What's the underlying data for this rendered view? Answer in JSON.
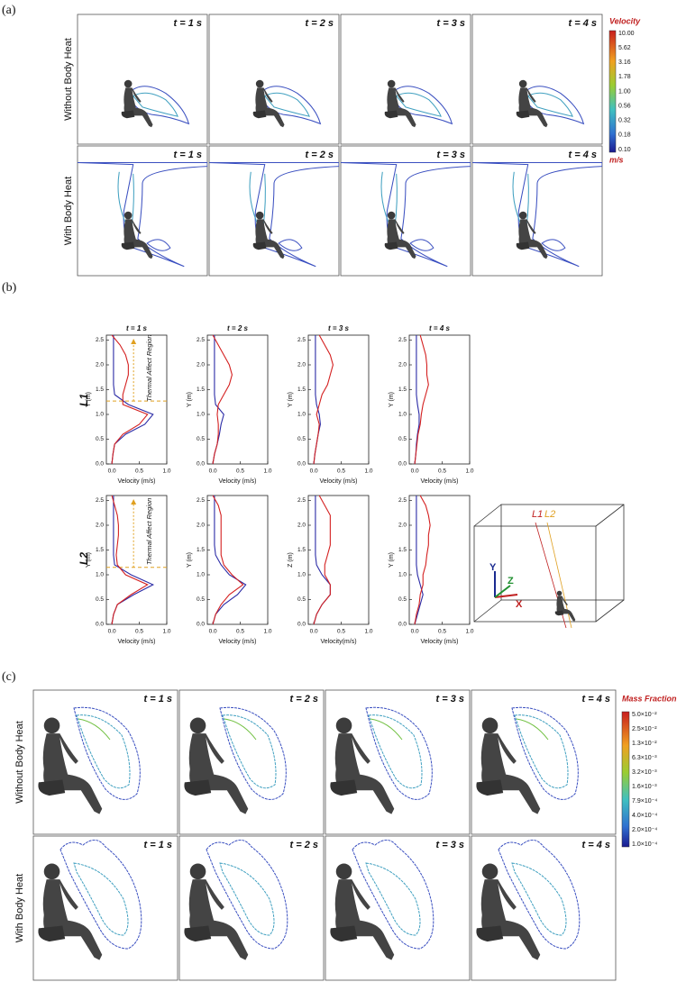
{
  "panel_a": {
    "label": "(a)",
    "row_labels": [
      "Without Body Heat",
      "With Body Heat"
    ],
    "time_labels": [
      "t = 1 s",
      "t = 2 s",
      "t = 3 s",
      "t = 4 s"
    ],
    "colorbar": {
      "title": "Velocity",
      "unit": "m/s",
      "labels": [
        "10.00",
        "5.62",
        "3.16",
        "1.78",
        "1.00",
        "0.56",
        "0.32",
        "0.18",
        "0.10"
      ]
    }
  },
  "panel_b": {
    "label": "(b)",
    "row_labels": [
      "L1",
      "L2"
    ],
    "diagram_labels": [
      "L1",
      "L2",
      "Y",
      "Z",
      "X"
    ]
  },
  "chart_data": [
    {
      "type": "line",
      "title": "t = 1 s",
      "xlabel": "Velocity (m/s)",
      "ylabel": "Y (m)",
      "xlim": [
        -0.1,
        1.0
      ],
      "ylim": [
        0,
        2.6
      ],
      "xticks": [
        {
          "value": 0,
          "label": "0.0"
        },
        {
          "value": 0.5,
          "label": "0.5"
        },
        {
          "value": 1,
          "label": "1.0"
        }
      ],
      "yticks": [
        {
          "value": 0,
          "label": "0.0"
        },
        {
          "value": 0.5,
          "label": "0.5"
        },
        {
          "value": 1,
          "label": "1.0"
        },
        {
          "value": 1.5,
          "label": "1.5"
        },
        {
          "value": 2,
          "label": "2.0"
        },
        {
          "value": 2.5,
          "label": "2.5"
        }
      ],
      "annotation": {
        "text": "Thermal Affect Region",
        "y": 1.27
      },
      "y": [
        0,
        0.2,
        0.4,
        0.6,
        0.8,
        1.0,
        1.2,
        1.4,
        1.6,
        1.8,
        2.0,
        2.2,
        2.4,
        2.6
      ],
      "series": [
        {
          "color": "#2b2ba6",
          "values": [
            0,
            0.02,
            0.05,
            0.25,
            0.6,
            0.75,
            0.3,
            0.05,
            0.03,
            0.03,
            0.03,
            0.03,
            0.03,
            0.03
          ]
        },
        {
          "color": "#d42020",
          "values": [
            0,
            0.02,
            0.05,
            0.2,
            0.5,
            0.65,
            0.2,
            0.2,
            0.25,
            0.3,
            0.3,
            0.25,
            0.15,
            0
          ]
        }
      ]
    },
    {
      "type": "line",
      "title": "t = 2 s",
      "xlabel": "Velocity (m/s)",
      "ylabel": "Y (m)",
      "xlim": [
        -0.1,
        1.0
      ],
      "ylim": [
        0,
        2.6
      ],
      "xticks": [
        {
          "value": 0,
          "label": "0.0"
        },
        {
          "value": 0.5,
          "label": "0.5"
        },
        {
          "value": 1,
          "label": "1.0"
        }
      ],
      "yticks": [
        {
          "value": 0,
          "label": "0.0"
        },
        {
          "value": 0.5,
          "label": "0.5"
        },
        {
          "value": 1,
          "label": "1.0"
        },
        {
          "value": 1.5,
          "label": "1.5"
        },
        {
          "value": 2,
          "label": "2.0"
        },
        {
          "value": 2.5,
          "label": "2.5"
        }
      ],
      "y": [
        0,
        0.2,
        0.4,
        0.6,
        0.8,
        1.0,
        1.2,
        1.4,
        1.6,
        1.8,
        2.0,
        2.2,
        2.4,
        2.6
      ],
      "series": [
        {
          "color": "#2b2ba6",
          "values": [
            0,
            0.03,
            0.08,
            0.12,
            0.15,
            0.2,
            0.05,
            0.03,
            0.03,
            0.03,
            0.03,
            0.03,
            0.03,
            0.03
          ]
        },
        {
          "color": "#d42020",
          "values": [
            0,
            0.03,
            0.08,
            0.1,
            0.1,
            0.08,
            0.1,
            0.2,
            0.3,
            0.35,
            0.3,
            0.2,
            0.1,
            0
          ]
        }
      ]
    },
    {
      "type": "line",
      "title": "t = 3 s",
      "xlabel": "Velocity (m/s)",
      "ylabel": "Y (m)",
      "xlim": [
        -0.1,
        1.0
      ],
      "ylim": [
        0,
        2.6
      ],
      "xticks": [
        {
          "value": 0,
          "label": "0.0"
        },
        {
          "value": 0.5,
          "label": "0.5"
        },
        {
          "value": 1,
          "label": "1.0"
        }
      ],
      "yticks": [
        {
          "value": 0,
          "label": "0.0"
        },
        {
          "value": 0.5,
          "label": "0.5"
        },
        {
          "value": 1,
          "label": "1.0"
        },
        {
          "value": 1.5,
          "label": "1.5"
        },
        {
          "value": 2,
          "label": "2.0"
        },
        {
          "value": 2.5,
          "label": "2.5"
        }
      ],
      "y": [
        0,
        0.2,
        0.4,
        0.6,
        0.8,
        1.0,
        1.2,
        1.4,
        1.6,
        1.8,
        2.0,
        2.2,
        2.4,
        2.6
      ],
      "series": [
        {
          "color": "#2b2ba6",
          "values": [
            0,
            0.02,
            0.05,
            0.08,
            0.12,
            0.1,
            0.05,
            0.03,
            0.03,
            0.03,
            0.03,
            0.03,
            0.03,
            0.03
          ]
        },
        {
          "color": "#d42020",
          "values": [
            0,
            0.02,
            0.05,
            0.08,
            0.1,
            0.05,
            0.1,
            0.15,
            0.25,
            0.3,
            0.35,
            0.3,
            0.2,
            0.1
          ]
        }
      ]
    },
    {
      "type": "line",
      "title": "t = 4 s",
      "xlabel": "Velocity (m/s)",
      "ylabel": "Y (m)",
      "xlim": [
        -0.1,
        1.0
      ],
      "ylim": [
        0,
        2.6
      ],
      "xticks": [
        {
          "value": 0,
          "label": "0.0"
        },
        {
          "value": 0.5,
          "label": "0.5"
        },
        {
          "value": 1,
          "label": "1.0"
        }
      ],
      "yticks": [
        {
          "value": 0,
          "label": "0.0"
        },
        {
          "value": 0.5,
          "label": "0.5"
        },
        {
          "value": 1,
          "label": "1.0"
        },
        {
          "value": 1.5,
          "label": "1.5"
        },
        {
          "value": 2,
          "label": "2.0"
        },
        {
          "value": 2.5,
          "label": "2.5"
        }
      ],
      "y": [
        0,
        0.2,
        0.4,
        0.6,
        0.8,
        1.0,
        1.2,
        1.4,
        1.6,
        1.8,
        2.0,
        2.2,
        2.4,
        2.6
      ],
      "series": [
        {
          "color": "#2b2ba6",
          "values": [
            0,
            0.02,
            0.03,
            0.05,
            0.08,
            0.08,
            0.05,
            0.03,
            0.03,
            0.03,
            0.03,
            0.03,
            0.03,
            0.03
          ]
        },
        {
          "color": "#d42020",
          "values": [
            0,
            0.02,
            0.04,
            0.06,
            0.1,
            0.12,
            0.15,
            0.2,
            0.25,
            0.22,
            0.22,
            0.2,
            0.15,
            0.1
          ]
        }
      ]
    },
    {
      "type": "line",
      "xlabel": "Velocity (m/s)",
      "ylabel": "Y (m)",
      "xlim": [
        -0.1,
        1.0
      ],
      "ylim": [
        0,
        2.6
      ],
      "xticks": [
        {
          "value": 0,
          "label": "0.0"
        },
        {
          "value": 0.5,
          "label": "0.5"
        },
        {
          "value": 1,
          "label": "1.0"
        }
      ],
      "yticks": [
        {
          "value": 0,
          "label": "0.0"
        },
        {
          "value": 0.5,
          "label": "0.5"
        },
        {
          "value": 1,
          "label": "1.0"
        },
        {
          "value": 1.5,
          "label": "1.5"
        },
        {
          "value": 2,
          "label": "2.0"
        },
        {
          "value": 2.5,
          "label": "2.5"
        }
      ],
      "annotation": {
        "text": "Thermal Affect Region",
        "y": 1.15
      },
      "y": [
        0,
        0.2,
        0.4,
        0.6,
        0.8,
        1.0,
        1.2,
        1.4,
        1.6,
        1.8,
        2.0,
        2.2,
        2.4,
        2.6
      ],
      "series": [
        {
          "color": "#2b2ba6",
          "values": [
            0,
            0.03,
            0.1,
            0.4,
            0.75,
            0.35,
            0.05,
            0.03,
            0.03,
            0.03,
            0.03,
            0.03,
            0.03,
            0.03
          ]
        },
        {
          "color": "#d42020",
          "values": [
            0,
            0.03,
            0.1,
            0.35,
            0.65,
            0.25,
            0.1,
            0.08,
            0.1,
            0.12,
            0.12,
            0.1,
            0.05,
            0
          ]
        }
      ]
    },
    {
      "type": "line",
      "xlabel": "Velocity (m/s)",
      "ylabel": "Y (m)",
      "xlim": [
        -0.1,
        1.0
      ],
      "ylim": [
        0,
        2.6
      ],
      "xticks": [
        {
          "value": 0,
          "label": "0.0"
        },
        {
          "value": 0.5,
          "label": "0.5"
        },
        {
          "value": 1,
          "label": "1.0"
        }
      ],
      "yticks": [
        {
          "value": 0,
          "label": "0.0"
        },
        {
          "value": 0.5,
          "label": "0.5"
        },
        {
          "value": 1,
          "label": "1.0"
        },
        {
          "value": 1.5,
          "label": "1.5"
        },
        {
          "value": 2,
          "label": "2.0"
        },
        {
          "value": 2.5,
          "label": "2.5"
        }
      ],
      "y": [
        0,
        0.2,
        0.4,
        0.6,
        0.8,
        1.0,
        1.2,
        1.4,
        1.6,
        1.8,
        2.0,
        2.2,
        2.4,
        2.6
      ],
      "series": [
        {
          "color": "#2b2ba6",
          "values": [
            0,
            0.05,
            0.2,
            0.45,
            0.6,
            0.3,
            0.15,
            0.05,
            0.03,
            0.03,
            0.03,
            0.03,
            0.03,
            0.03
          ]
        },
        {
          "color": "#d42020",
          "values": [
            0,
            0.05,
            0.15,
            0.3,
            0.55,
            0.35,
            0.2,
            0.15,
            0.15,
            0.15,
            0.15,
            0.15,
            0.1,
            0
          ]
        }
      ]
    },
    {
      "type": "line",
      "xlabel": "Velocity(m/s)",
      "ylabel": "Z (m)",
      "xlim": [
        -0.1,
        1.0
      ],
      "ylim": [
        0,
        2.6
      ],
      "xticks": [
        {
          "value": 0,
          "label": "0.0"
        },
        {
          "value": 0.5,
          "label": "0.5"
        },
        {
          "value": 1,
          "label": "1.0"
        }
      ],
      "yticks": [
        {
          "value": 0,
          "label": "0.0"
        },
        {
          "value": 0.5,
          "label": "0.5"
        },
        {
          "value": 1,
          "label": "1.0"
        },
        {
          "value": 1.5,
          "label": "1.5"
        },
        {
          "value": 2,
          "label": "2.0"
        },
        {
          "value": 2.5,
          "label": "2.5"
        }
      ],
      "y": [
        0,
        0.2,
        0.4,
        0.6,
        0.8,
        1.0,
        1.2,
        1.4,
        1.6,
        1.8,
        2.0,
        2.2,
        2.4,
        2.6
      ],
      "series": [
        {
          "color": "#2b2ba6",
          "values": [
            0,
            0.05,
            0.15,
            0.3,
            0.3,
            0.15,
            0.05,
            0.03,
            0.03,
            0.03,
            0.03,
            0.03,
            0.03,
            0.03
          ]
        },
        {
          "color": "#d42020",
          "values": [
            0,
            0.05,
            0.15,
            0.3,
            0.3,
            0.2,
            0.2,
            0.25,
            0.3,
            0.3,
            0.3,
            0.3,
            0.2,
            0.1
          ]
        }
      ]
    },
    {
      "type": "line",
      "xlabel": "Velocity (m/s)",
      "ylabel": "Y (m)",
      "xlim": [
        -0.1,
        1.0
      ],
      "ylim": [
        0,
        2.6
      ],
      "xticks": [
        {
          "value": 0,
          "label": "0.0"
        },
        {
          "value": 0.5,
          "label": "0.5"
        },
        {
          "value": 1,
          "label": "1.0"
        }
      ],
      "yticks": [
        {
          "value": 0,
          "label": "0.0"
        },
        {
          "value": 0.5,
          "label": "0.5"
        },
        {
          "value": 1,
          "label": "1.0"
        },
        {
          "value": 1.5,
          "label": "1.5"
        },
        {
          "value": 2,
          "label": "2.0"
        },
        {
          "value": 2.5,
          "label": "2.5"
        }
      ],
      "y": [
        0,
        0.2,
        0.4,
        0.6,
        0.8,
        1.0,
        1.2,
        1.4,
        1.6,
        1.8,
        2.0,
        2.2,
        2.4,
        2.6
      ],
      "series": [
        {
          "color": "#2b2ba6",
          "values": [
            0,
            0.05,
            0.1,
            0.15,
            0.1,
            0.05,
            0.03,
            0.03,
            0.03,
            0.03,
            0.03,
            0.03,
            0.03,
            0.03
          ]
        },
        {
          "color": "#d42020",
          "values": [
            0,
            0.03,
            0.08,
            0.1,
            0.15,
            0.15,
            0.2,
            0.22,
            0.25,
            0.25,
            0.28,
            0.25,
            0.2,
            0.1
          ]
        }
      ]
    }
  ],
  "panel_c": {
    "label": "(c)",
    "row_labels": [
      "Without Body Heat",
      "With Body Heat"
    ],
    "time_labels": [
      "t = 1 s",
      "t = 2 s",
      "t = 3 s",
      "t = 4 s"
    ],
    "colorbar": {
      "title": "Mass Fraction",
      "labels": [
        "5.0×10⁻²",
        "2.5×10⁻²",
        "1.3×10⁻²",
        "6.3×10⁻³",
        "3.2×10⁻³",
        "1.6×10⁻³",
        "7.9×10⁻⁴",
        "4.0×10⁻⁴",
        "2.0×10⁻⁴",
        "1.0×10⁻⁴"
      ]
    }
  }
}
